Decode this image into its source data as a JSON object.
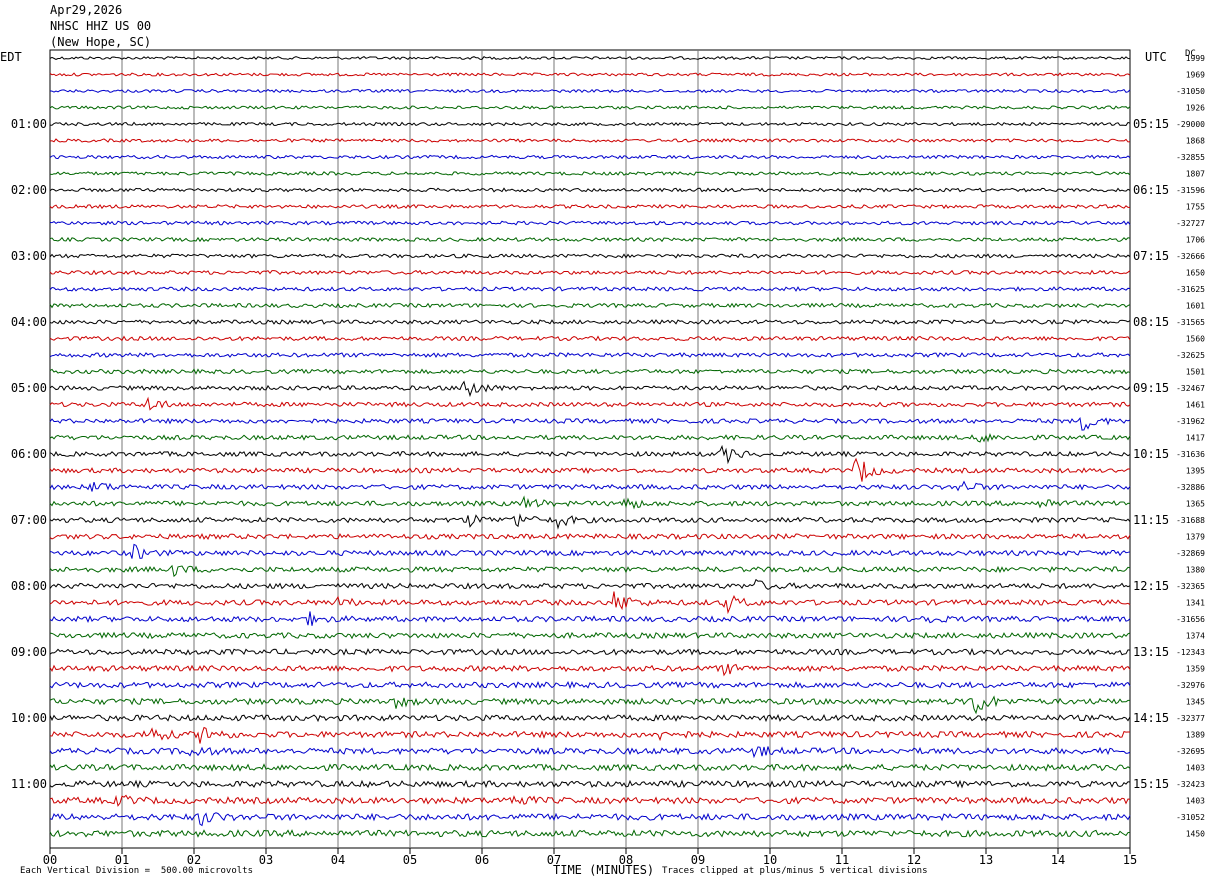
{
  "header": {
    "date": "Apr29,2026",
    "station": "NHSC HHZ US 00",
    "location": "(New Hope, SC)"
  },
  "left_tz": "EDT",
  "right_tz": "UTC",
  "right_col_title": "DC",
  "footer": {
    "scale_note": "Each Vertical Division =  500.00 microvolts",
    "xaxis_title": "TIME (MINUTES)",
    "clip_note": "Traces clipped at plus/minus 5 vertical divisions"
  },
  "colors": {
    "black": "#000000",
    "red": "#cc0000",
    "blue": "#0000cc",
    "green": "#006600",
    "grid": "#777777"
  },
  "chart_data": {
    "type": "line",
    "title": "NHSC HHZ US 00 (New Hope, SC)",
    "xlabel": "TIME (MINUTES)",
    "xlim": [
      0,
      15
    ],
    "x_ticks": [
      "00",
      "01",
      "02",
      "03",
      "04",
      "05",
      "06",
      "07",
      "08",
      "09",
      "10",
      "11",
      "12",
      "13",
      "14",
      "15"
    ],
    "trace_colors": [
      "black",
      "red",
      "blue",
      "green"
    ],
    "left_hour_labels": [
      "01:00",
      "02:00",
      "03:00",
      "04:00",
      "05:00",
      "06:00",
      "07:00",
      "08:00",
      "09:00",
      "10:00",
      "11:00"
    ],
    "right_hour_labels": [
      "05:15",
      "06:15",
      "07:15",
      "08:15",
      "09:15",
      "10:15",
      "11:15",
      "12:15",
      "13:15",
      "14:15",
      "15:15"
    ],
    "dc_offsets": [
      "1999",
      "1969",
      "-31050",
      "1926",
      "-29000",
      "1868",
      "-32855",
      "1807",
      "-31596",
      "1755",
      "-32727",
      "1706",
      "-32666",
      "1650",
      "-31625",
      "1601",
      "-31565",
      "1560",
      "-32625",
      "1501",
      "-32467",
      "1461",
      "-31962",
      "1417",
      "-31636",
      "1395",
      "-32886",
      "1365",
      "-31688",
      "1379",
      "-32869",
      "1380",
      "-32365",
      "1341",
      "-31656",
      "1374",
      "-12343",
      "1359",
      "-32976",
      "1345",
      "-32377",
      "1389",
      "-32695",
      "1403",
      "-32423",
      "1403",
      "-31052",
      "1450"
    ],
    "events": [
      {
        "trace": 20,
        "minute": 5.75,
        "amp": 2.2
      },
      {
        "trace": 21,
        "minute": 1.35,
        "amp": 1.1
      },
      {
        "trace": 22,
        "minute": 14.35,
        "amp": 1.5
      },
      {
        "trace": 23,
        "minute": 12.9,
        "amp": 0.7
      },
      {
        "trace": 24,
        "minute": 9.35,
        "amp": 1.4
      },
      {
        "trace": 25,
        "minute": 11.2,
        "amp": 2.3
      },
      {
        "trace": 26,
        "minute": 0.6,
        "amp": 0.9
      },
      {
        "trace": 26,
        "minute": 12.65,
        "amp": 1.0
      },
      {
        "trace": 27,
        "minute": 6.6,
        "amp": 1.0
      },
      {
        "trace": 27,
        "minute": 7.95,
        "amp": 1.1
      },
      {
        "trace": 27,
        "minute": 13.75,
        "amp": 0.8
      },
      {
        "trace": 28,
        "minute": 5.8,
        "amp": 0.9
      },
      {
        "trace": 28,
        "minute": 6.45,
        "amp": 1.1
      },
      {
        "trace": 28,
        "minute": 7.0,
        "amp": 1.3
      },
      {
        "trace": 30,
        "minute": 1.15,
        "amp": 1.1
      },
      {
        "trace": 31,
        "minute": 1.7,
        "amp": 0.8
      },
      {
        "trace": 32,
        "minute": 9.8,
        "amp": 0.7
      },
      {
        "trace": 33,
        "minute": 7.85,
        "amp": 1.9
      },
      {
        "trace": 33,
        "minute": 9.4,
        "amp": 1.2
      },
      {
        "trace": 33,
        "minute": 4.0,
        "amp": 0.6
      },
      {
        "trace": 34,
        "minute": 3.6,
        "amp": 0.8
      },
      {
        "trace": 34,
        "minute": 12.1,
        "amp": 0.7
      },
      {
        "trace": 37,
        "minute": 9.35,
        "amp": 0.8
      },
      {
        "trace": 39,
        "minute": 12.8,
        "amp": 2.8
      },
      {
        "trace": 39,
        "minute": 4.8,
        "amp": 0.7
      },
      {
        "trace": 41,
        "minute": 1.35,
        "amp": 1.6
      },
      {
        "trace": 41,
        "minute": 2.1,
        "amp": 1.5
      },
      {
        "trace": 41,
        "minute": 8.5,
        "amp": 0.9
      },
      {
        "trace": 42,
        "minute": 1.95,
        "amp": 1.0
      },
      {
        "trace": 42,
        "minute": 9.8,
        "amp": 0.8
      },
      {
        "trace": 45,
        "minute": 0.95,
        "amp": 0.7
      },
      {
        "trace": 45,
        "minute": 6.4,
        "amp": 0.9
      },
      {
        "trace": 46,
        "minute": 2.1,
        "amp": 1.1
      }
    ]
  }
}
